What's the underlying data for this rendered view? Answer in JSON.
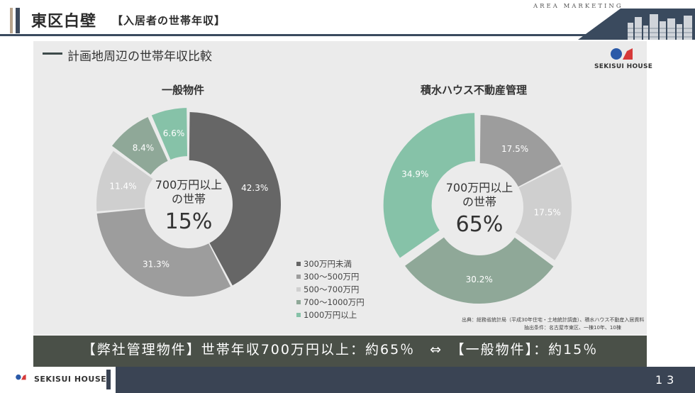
{
  "header": {
    "title": "東区白壁",
    "subtitle": "【入居者の世帯年収】",
    "tag": "AREA MARKETING"
  },
  "section": {
    "title": "計画地周辺の世帯年収比較"
  },
  "brand": {
    "name": "SEKISUI HOUSE"
  },
  "colors": {
    "header_rule": "#3a4a5e",
    "panel_bg": "#ebebeb",
    "summary_band": "#4a5048",
    "footer": "#3a4454",
    "logo_blue": "#2b5aa8",
    "logo_red": "#d63a3a"
  },
  "chart_data": [
    {
      "type": "pie",
      "title": "一般物件",
      "center_text": [
        "700万円以上",
        "の世帯"
      ],
      "center_value": "15%",
      "categories": [
        "300万円未満",
        "300～500万円",
        "500～700万円",
        "700～1000万円",
        "1000万円以上"
      ],
      "values": [
        42.3,
        31.3,
        11.4,
        8.4,
        6.6
      ],
      "labels": [
        "42.3%",
        "31.3%",
        "11.4%",
        "8.4%",
        "6.6%"
      ],
      "colors": [
        "#666666",
        "#9d9d9d",
        "#cfcfcf",
        "#8fa898",
        "#86c2a8"
      ],
      "exploded": [
        3,
        4
      ]
    },
    {
      "type": "pie",
      "title": "積水ハウス不動産管理",
      "center_text": [
        "700万円以上",
        "の世帯"
      ],
      "center_value": "65%",
      "categories": [
        "300～500万円",
        "500～700万円",
        "700～1000万円",
        "1000万円以上"
      ],
      "values": [
        17.5,
        17.5,
        30.2,
        34.9
      ],
      "labels": [
        "17.5%",
        "17.5%",
        "30.2%",
        "34.9%"
      ],
      "colors": [
        "#9d9d9d",
        "#cfcfcf",
        "#8fa898",
        "#86c2a8"
      ],
      "exploded": [
        2,
        3
      ]
    }
  ],
  "legend": [
    {
      "label": "300万円未満",
      "color": "#666666"
    },
    {
      "label": "300～500万円",
      "color": "#9d9d9d"
    },
    {
      "label": "500～700万円",
      "color": "#cfcfcf"
    },
    {
      "label": "700～1000万円",
      "color": "#8fa898"
    },
    {
      "label": "1000万円以上",
      "color": "#86c2a8"
    }
  ],
  "source": {
    "line1": "出典：総務省統計局（平成30年住宅・土地統計調査）、積水ハウス不動産入居資料",
    "line2": "抽出条件：名古屋市東区、一棟10年、10棟"
  },
  "summary": "【弊社管理物件】世帯年収700万円以上：約65％　⇔　【一般物件】：約15％",
  "footer": {
    "page_number": "13"
  }
}
